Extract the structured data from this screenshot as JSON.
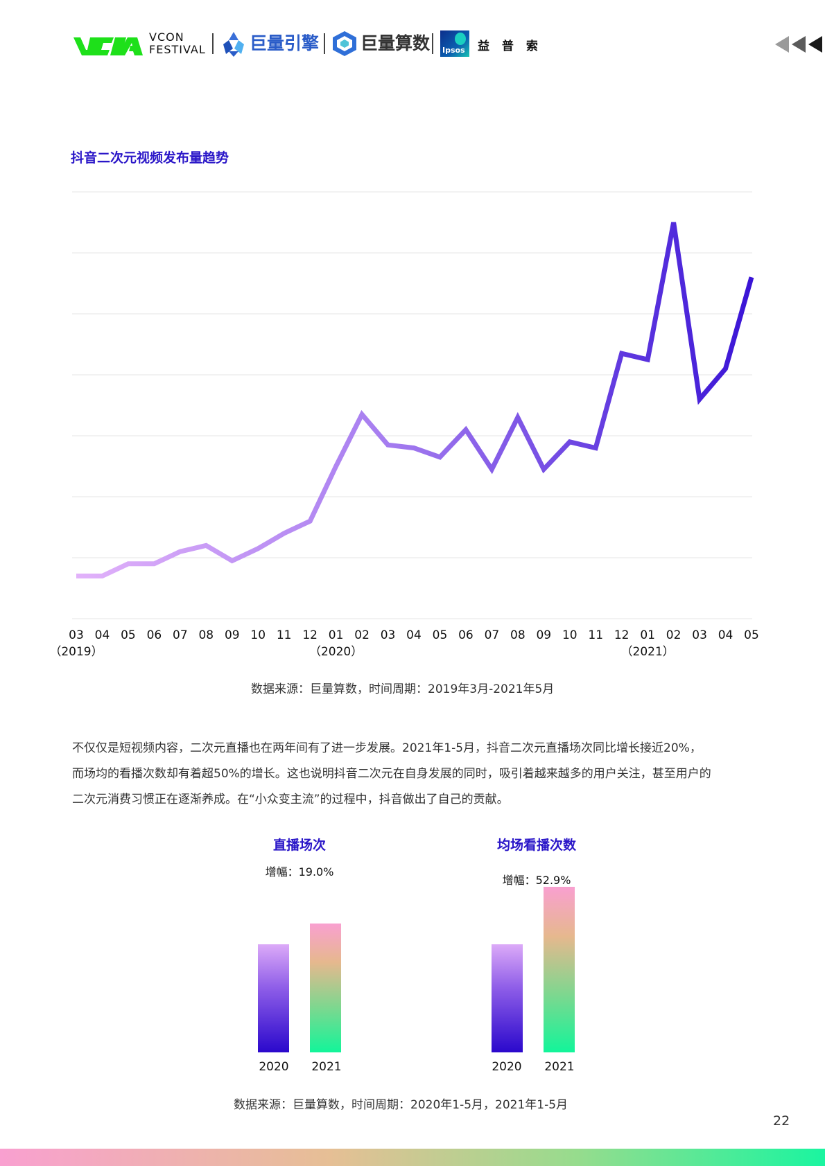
{
  "header": {
    "vcon_line1": "VCON",
    "vcon_line2": "FESTIVAL",
    "brand_ocean": "巨量引擎",
    "brand_suan": "巨量算数",
    "brand_ipsos_logo": "Ipsos",
    "brand_ipsos_cn": "益 普 索"
  },
  "colors": {
    "title_blue": "#2a16c8",
    "line_start": "#e2b2fa",
    "line_end": "#3a14d6",
    "bar_2020": "#2a08cc",
    "bar_2021": "#12f59a"
  },
  "chart_data": [
    {
      "type": "line",
      "title": "抖音二次元视频发布量趋势",
      "x": [
        "03",
        "04",
        "05",
        "06",
        "07",
        "08",
        "09",
        "10",
        "11",
        "12",
        "01",
        "02",
        "03",
        "04",
        "05",
        "06",
        "07",
        "08",
        "09",
        "10",
        "11",
        "12",
        "01",
        "02",
        "03",
        "04",
        "05"
      ],
      "year_labels": [
        {
          "at": "03",
          "text": "（2019）"
        },
        {
          "at": "01",
          "text": "（2020）"
        },
        {
          "at": "01",
          "text": "（2021）"
        }
      ],
      "values": [
        7.0,
        7.0,
        9.0,
        9.0,
        11.0,
        12.0,
        9.5,
        11.5,
        14.0,
        16.0,
        25.0,
        33.5,
        28.5,
        28.0,
        26.5,
        31.0,
        24.5,
        33.0,
        24.5,
        29.0,
        28.0,
        43.5,
        42.5,
        65.0,
        36.0,
        41.0,
        56.0
      ],
      "ylim": [
        0,
        70
      ],
      "y_gridlines": 7,
      "y_ticks_shown": false,
      "grid": true,
      "source": "数据来源：巨量算数，时间周期：2019年3月-2021年5月"
    },
    {
      "type": "bar",
      "title": "直播场次",
      "growth_label": "增幅：19.0%",
      "categories": [
        "2020",
        "2021"
      ],
      "values": [
        100,
        119.0
      ]
    },
    {
      "type": "bar",
      "title": "均场看播次数",
      "growth_label": "增幅：52.9%",
      "categories": [
        "2020",
        "2021"
      ],
      "values": [
        100,
        152.9
      ]
    }
  ],
  "paragraph": [
    "不仅仅是短视频内容，二次元直播也在两年间有了进一步发展。2021年1-5月，抖音二次元直播场次同比增长接近20%，",
    "而场均的看播次数却有着超50%的增长。这也说明抖音二次元在自身发展的同时，吸引着越来越多的用户关注，甚至用户的",
    "二次元消费习惯正在逐渐养成。在“小众变主流”的过程中，抖音做出了自己的贡献。"
  ],
  "bar_source": "数据来源：巨量算数，时间周期：2020年1-5月，2021年1-5月",
  "page_number": "22"
}
